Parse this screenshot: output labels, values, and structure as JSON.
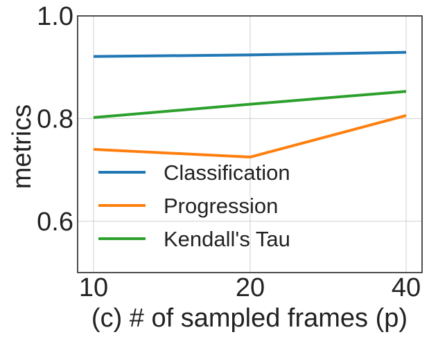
{
  "chart_data": {
    "type": "line",
    "xlabel": "(c) # of sampled frames (p)",
    "ylabel": "metrics",
    "x": [
      10,
      20,
      40
    ],
    "x_tick_labels": [
      "10",
      "20",
      "40"
    ],
    "y_ticks": [
      0.6,
      0.8,
      1.0
    ],
    "y_tick_labels": [
      "0.6",
      "0.8",
      "1.0"
    ],
    "ylim": [
      0.5,
      1.0
    ],
    "grid": true,
    "legend_position": "lower-left",
    "series": [
      {
        "name": "Classification",
        "color": "#1f77b4",
        "values": [
          0.921,
          0.924,
          0.929
        ]
      },
      {
        "name": "Progression",
        "color": "#ff7f0e",
        "values": [
          0.74,
          0.725,
          0.806
        ]
      },
      {
        "name": "Kendall's Tau",
        "color": "#2ca02c",
        "values": [
          0.802,
          0.828,
          0.853
        ]
      }
    ]
  }
}
